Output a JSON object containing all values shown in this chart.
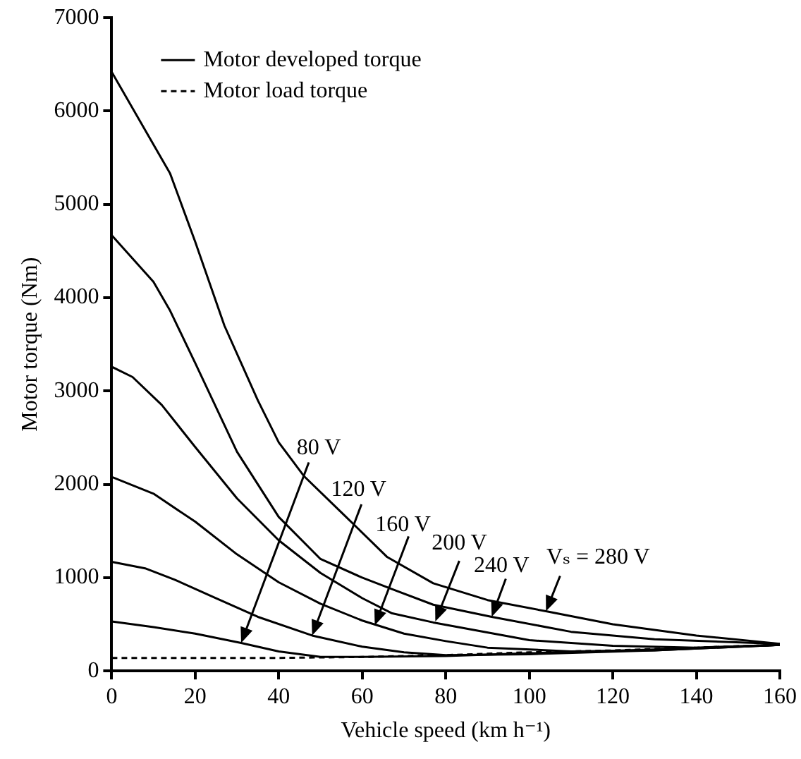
{
  "chart_data": {
    "type": "line",
    "xlabel": "Vehicle speed (km h⁻¹)",
    "ylabel": "Motor torque (Nm)",
    "xlim": [
      0,
      160
    ],
    "xticks": [
      0,
      20,
      40,
      60,
      80,
      100,
      120,
      140,
      160
    ],
    "ylim": [
      0,
      7000
    ],
    "yticks": [
      0,
      1000,
      2000,
      3000,
      4000,
      5000,
      6000,
      7000
    ],
    "grid": false,
    "legend": "top left",
    "marker": "none",
    "series": [
      {
        "name": "Motor developed torque",
        "color": "#000000",
        "line_style": "solid",
        "x": [
          0,
          14,
          20,
          27,
          35,
          40,
          46,
          55,
          66,
          77,
          90,
          104,
          120,
          140,
          160
        ],
        "values": [
          6420,
          5330,
          4600,
          3700,
          2900,
          2450,
          2090,
          1700,
          1220,
          940,
          760,
          640,
          500,
          380,
          290
        ]
      },
      {
        "color": "#000000",
        "line_style": "solid",
        "x": [
          0,
          10,
          14,
          20,
          30,
          40,
          50,
          60,
          67,
          77,
          91,
          110,
          130,
          160
        ],
        "values": [
          4670,
          4170,
          3860,
          3300,
          2350,
          1650,
          1200,
          1000,
          880,
          710,
          580,
          420,
          340,
          290
        ]
      },
      {
        "color": "#000000",
        "line_style": "solid",
        "x": [
          0,
          5,
          12,
          20,
          30,
          40,
          50,
          60,
          67,
          77,
          100,
          120,
          140,
          160
        ],
        "values": [
          3260,
          3150,
          2850,
          2400,
          1850,
          1400,
          1050,
          780,
          620,
          520,
          330,
          270,
          250,
          280
        ]
      },
      {
        "color": "#000000",
        "line_style": "solid",
        "x": [
          0,
          10,
          20,
          30,
          40,
          50,
          60,
          70,
          80,
          90,
          110,
          130,
          160
        ],
        "values": [
          2080,
          1900,
          1600,
          1250,
          950,
          720,
          540,
          400,
          320,
          250,
          210,
          220,
          280
        ]
      },
      {
        "color": "#000000",
        "line_style": "solid",
        "x": [
          0,
          8,
          15,
          25,
          35,
          48,
          60,
          70,
          80,
          100,
          130,
          160
        ],
        "values": [
          1170,
          1100,
          980,
          780,
          580,
          380,
          260,
          200,
          170,
          180,
          220,
          280
        ]
      },
      {
        "color": "#000000",
        "line_style": "solid",
        "x": [
          0,
          10,
          20,
          31,
          40,
          50,
          60,
          80,
          100,
          130,
          160
        ],
        "values": [
          530,
          470,
          400,
          300,
          210,
          150,
          150,
          160,
          190,
          230,
          280
        ]
      },
      {
        "name": "Motor load torque",
        "color": "#000000",
        "line_style": "dashed",
        "x": [
          0,
          40,
          60,
          80,
          100,
          120,
          140,
          160
        ],
        "values": [
          140,
          140,
          150,
          170,
          200,
          220,
          250,
          280
        ]
      }
    ],
    "annotations": [
      {
        "text": "80 V",
        "x": 31,
        "y": 300
      },
      {
        "text": "120 V",
        "x": 48,
        "y": 380
      },
      {
        "text": "160 V",
        "x": 63,
        "y": 490
      },
      {
        "text": "200 V",
        "x": 77.5,
        "y": 530
      },
      {
        "text": "240 V",
        "x": 91,
        "y": 580
      },
      {
        "text": "Vₛ = 280 V",
        "x": 104,
        "y": 640
      }
    ]
  }
}
